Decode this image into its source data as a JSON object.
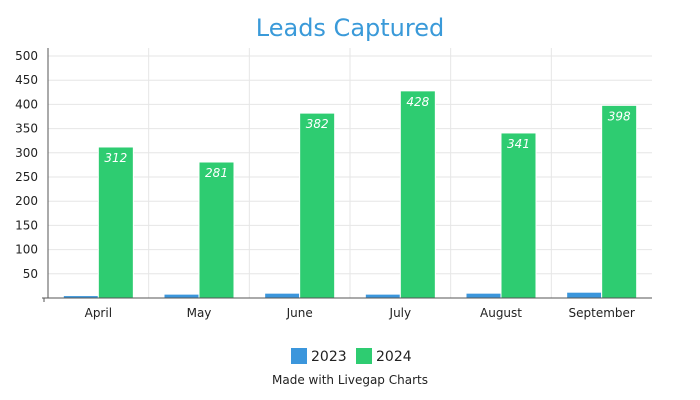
{
  "chart_data": {
    "type": "bar",
    "title": "Leads Captured",
    "categories": [
      "April",
      "May",
      "June",
      "July",
      "August",
      "September"
    ],
    "series": [
      {
        "name": "2023",
        "values": [
          5,
          8,
          10,
          8,
          10,
          12
        ],
        "color": "#3b96dc"
      },
      {
        "name": "2024",
        "values": [
          312,
          281,
          382,
          428,
          341,
          398
        ],
        "color": "#2ecc71"
      }
    ],
    "data_labels_series": "2024",
    "ylim": [
      0,
      500
    ],
    "yticks": [
      50,
      100,
      150,
      200,
      250,
      300,
      350,
      400,
      450,
      500
    ],
    "xlabel": "",
    "ylabel": "",
    "grid": true,
    "legend_position": "bottom-center"
  },
  "footer": {
    "credit": "Made with Livegap Charts"
  }
}
